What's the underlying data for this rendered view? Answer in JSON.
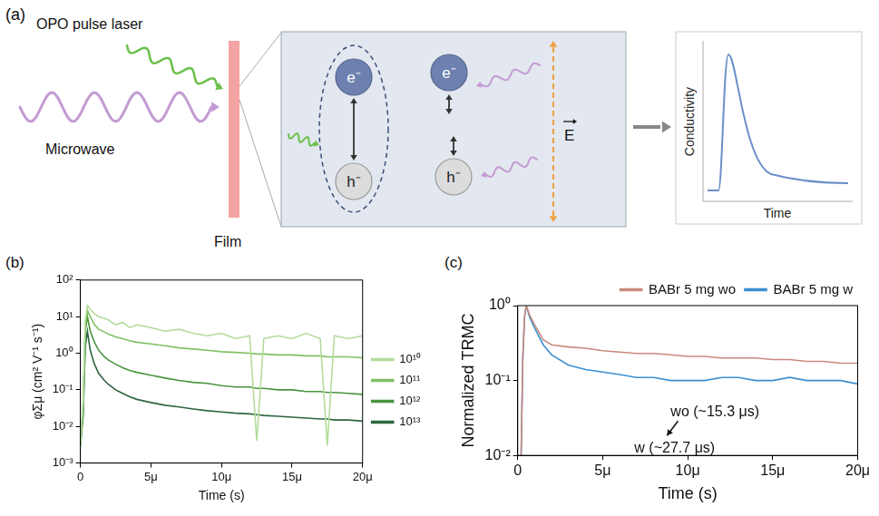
{
  "diagram": {
    "label": "(a)",
    "laser_label": "OPO pulse laser",
    "microwave_label": "Microwave",
    "film_label": "Film",
    "bound_pair": [
      "e⁻",
      "h⁻"
    ],
    "free_carriers": [
      "e⁻",
      "h⁻"
    ],
    "field_label": "E",
    "inset": {
      "x_label": "Time",
      "y_label": "Conductivity"
    }
  },
  "chart_data": [
    {
      "type": "line",
      "panel_label": "(b)",
      "x_label": "Time (s)",
      "y_label": "φΣμ (cm² V⁻¹ s⁻¹)",
      "log": "y",
      "grid": false,
      "legend": "right",
      "xlim": [
        0,
        2e-05
      ],
      "xticks": [
        0,
        {
          "value": 5e-06,
          "label": "5μ"
        },
        {
          "value": 1e-05,
          "label": "10μ"
        },
        {
          "value": 1.5e-05,
          "label": "15μ"
        },
        {
          "value": 2e-05,
          "label": "20μ"
        }
      ],
      "ylim": [
        0.001,
        100
      ],
      "yticks": [
        {
          "value": 0.001,
          "label": "10⁻³"
        },
        {
          "value": 0.01,
          "label": "10⁻²"
        },
        {
          "value": 0.1,
          "label": "10⁻¹"
        },
        {
          "value": 1,
          "label": "10⁰"
        },
        {
          "value": 10,
          "label": "10¹"
        },
        {
          "value": 100,
          "label": "10²"
        }
      ],
      "x": [
        0,
        2e-07,
        3.5e-07,
        5e-07,
        7e-07,
        1e-06,
        1.3e-06,
        1.7e-06,
        2e-06,
        2.5e-06,
        3e-06,
        3.5e-06,
        4e-06,
        5e-06,
        6e-06,
        7e-06,
        8e-06,
        9e-06,
        1e-05,
        1.1e-05,
        1.2e-05,
        1.25e-05,
        1.3e-05,
        1.4e-05,
        1.5e-05,
        1.6e-05,
        1.7e-05,
        1.75e-05,
        1.8e-05,
        1.9e-05,
        2e-05
      ],
      "series": [
        {
          "name": "10¹⁰",
          "color": "#b3dc9b",
          "values": [
            0.003,
            0.05,
            8,
            20,
            16,
            12,
            10,
            9,
            8,
            6,
            7,
            5,
            6,
            5,
            4,
            4.5,
            3.5,
            3,
            3.5,
            2.5,
            3,
            0.004,
            2.5,
            3,
            2.5,
            3.5,
            2.5,
            0.003,
            3,
            2.5,
            3
          ]
        },
        {
          "name": "10¹¹",
          "color": "#7fc064",
          "values": [
            0.003,
            0.04,
            6,
            15,
            10,
            6,
            4.5,
            3.8,
            3.3,
            2.8,
            2.5,
            2.2,
            2,
            1.8,
            1.6,
            1.4,
            1.3,
            1.2,
            1.1,
            1.05,
            1,
            0.95,
            0.95,
            0.9,
            0.9,
            0.85,
            0.85,
            0.8,
            0.8,
            0.8,
            0.75
          ]
        },
        {
          "name": "10¹²",
          "color": "#4a9440",
          "values": [
            0.003,
            0.03,
            4,
            10,
            4,
            2,
            1.2,
            0.8,
            0.65,
            0.5,
            0.4,
            0.34,
            0.3,
            0.25,
            0.21,
            0.18,
            0.16,
            0.15,
            0.13,
            0.12,
            0.12,
            0.11,
            0.11,
            0.1,
            0.1,
            0.09,
            0.09,
            0.085,
            0.085,
            0.08,
            0.075
          ]
        },
        {
          "name": "10¹³",
          "color": "#2c6640",
          "values": [
            0.003,
            0.02,
            1.5,
            4,
            1.2,
            0.5,
            0.28,
            0.18,
            0.14,
            0.1,
            0.08,
            0.065,
            0.055,
            0.045,
            0.038,
            0.034,
            0.03,
            0.027,
            0.025,
            0.023,
            0.022,
            0.021,
            0.02,
            0.019,
            0.018,
            0.017,
            0.016,
            0.016,
            0.015,
            0.015,
            0.014
          ]
        }
      ]
    },
    {
      "type": "line",
      "panel_label": "(c)",
      "x_label": "Time (s)",
      "y_label": "Normalized TRMC",
      "log": "y",
      "grid": false,
      "legend": "top",
      "xlim": [
        0,
        2e-05
      ],
      "xticks": [
        0,
        {
          "value": 5e-06,
          "label": "5μ"
        },
        {
          "value": 1e-05,
          "label": "10μ"
        },
        {
          "value": 1.5e-05,
          "label": "15μ"
        },
        {
          "value": 2e-05,
          "label": "20μ"
        }
      ],
      "ylim": [
        0.01,
        1
      ],
      "yticks": [
        {
          "value": 0.01,
          "label": "10⁻²"
        },
        {
          "value": 0.1,
          "label": "10⁻¹"
        },
        {
          "value": 1,
          "label": "10⁰"
        }
      ],
      "x": [
        2e-07,
        3e-07,
        4e-07,
        5e-07,
        7e-07,
        1e-06,
        1.5e-06,
        2e-06,
        3e-06,
        4e-06,
        5e-06,
        6e-06,
        7e-06,
        8e-06,
        9e-06,
        1e-05,
        1.1e-05,
        1.2e-05,
        1.3e-05,
        1.4e-05,
        1.5e-05,
        1.6e-05,
        1.7e-05,
        1.8e-05,
        1.9e-05,
        2e-05
      ],
      "series": [
        {
          "name": "BABr 5 mg wo",
          "color": "#c98a7e",
          "values": [
            0.01,
            0.2,
            0.7,
            1.0,
            0.75,
            0.55,
            0.35,
            0.3,
            0.28,
            0.27,
            0.25,
            0.24,
            0.23,
            0.23,
            0.22,
            0.21,
            0.21,
            0.2,
            0.2,
            0.2,
            0.19,
            0.19,
            0.18,
            0.18,
            0.17,
            0.17
          ]
        },
        {
          "name": "BABr 5 mg w",
          "color": "#3d8fd1",
          "values": [
            0.01,
            0.2,
            0.7,
            1.0,
            0.7,
            0.5,
            0.3,
            0.22,
            0.16,
            0.14,
            0.13,
            0.12,
            0.11,
            0.11,
            0.1,
            0.1,
            0.1,
            0.11,
            0.11,
            0.1,
            0.1,
            0.11,
            0.1,
            0.1,
            0.1,
            0.09
          ]
        }
      ],
      "annotations": [
        "wo (~15.3 μs)",
        "w (~27.7 μs)"
      ]
    }
  ]
}
